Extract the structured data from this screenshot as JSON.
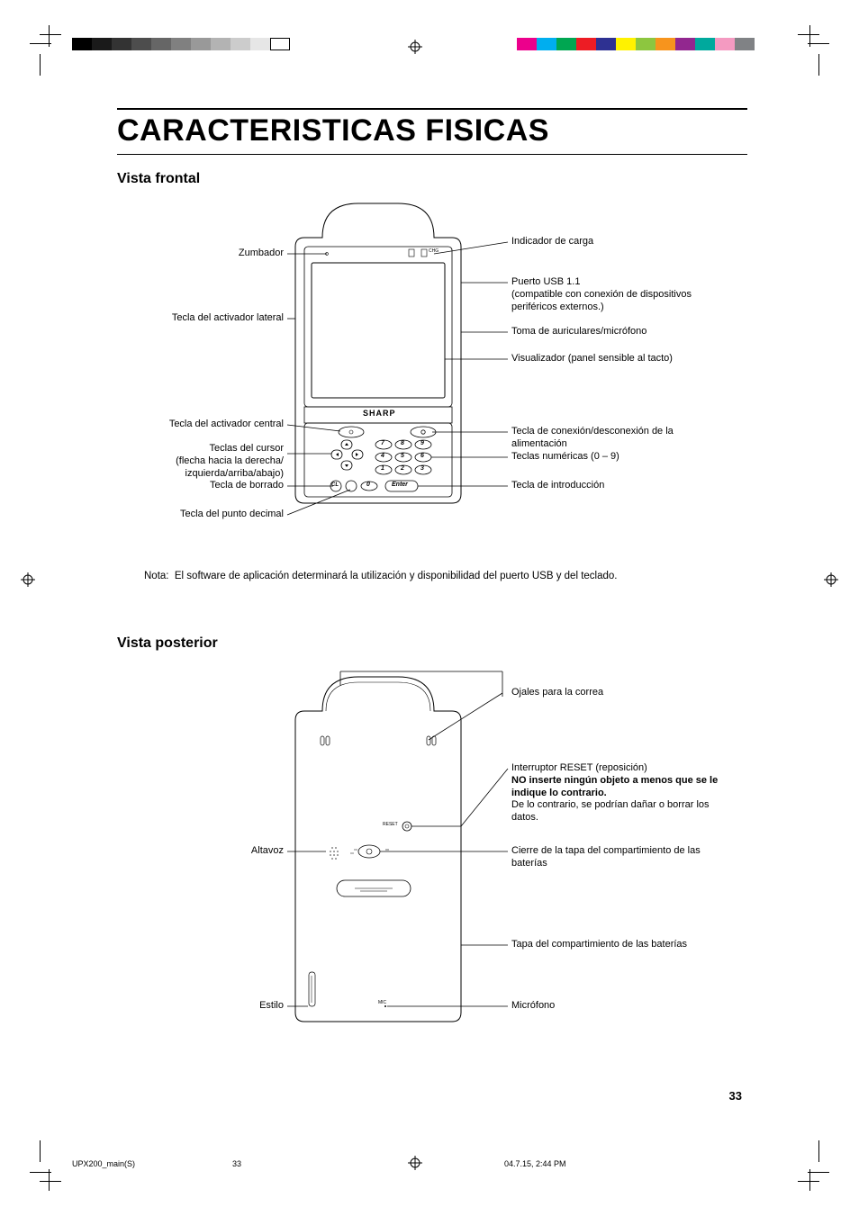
{
  "print_marks": {
    "gray_bar_colors": [
      "#000000",
      "#1a1a1a",
      "#333333",
      "#4d4d4d",
      "#666666",
      "#808080",
      "#999999",
      "#b3b3b3",
      "#cccccc",
      "#e6e6e6",
      "#ffffff"
    ],
    "cmyk_bar_colors": [
      "#ec008c",
      "#00aeef",
      "#00a651",
      "#ed1c24",
      "#2e3192",
      "#fff200",
      "#8dc63f",
      "#f7941d",
      "#92278f",
      "#00a99d",
      "#f49ac1",
      "#808285"
    ]
  },
  "title": "CARACTERISTICAS FISICAS",
  "section1": "Vista frontal",
  "front": {
    "brand": "SHARP",
    "chg": "CHG",
    "left": {
      "zumbador": "Zumbador",
      "activador_lateral": "Tecla del activador lateral",
      "activador_central": "Tecla del activador central",
      "cursor": "Teclas del cursor",
      "cursor_sub": "(flecha hacia la derecha/\nizquierda/arriba/abajo)",
      "borrado": "Tecla de borrado",
      "decimal": "Tecla del punto decimal"
    },
    "right": {
      "carga": "Indicador de carga",
      "usb": "Puerto USB 1.1",
      "usb_sub": "(compatible con conexión de dispositivos periféricos externos.)",
      "audio": "Toma de auriculares/micrófono",
      "display": "Visualizador (panel sensible al tacto)",
      "power": "Tecla de conexión/desconexión de la alimentación",
      "numeric": "Teclas numéricas (0 – 9)",
      "enter": "Tecla de introducción"
    },
    "keys": {
      "k7": "7",
      "k8": "8",
      "k9": "9",
      "k4": "4",
      "k5": "5",
      "k6": "6",
      "k1": "1",
      "k2": "2",
      "k3": "3",
      "k0": "0",
      "cl": "CL",
      "enter": "Enter"
    }
  },
  "note_label": "Nota:",
  "note_text": "El software de aplicación determinará la utilización y disponibilidad del puerto USB y del teclado.",
  "section2": "Vista posterior",
  "back": {
    "reset_small": "RESET",
    "mic_small": "MIC",
    "left": {
      "altavoz": "Altavoz",
      "estilo": "Estilo"
    },
    "right": {
      "ojales": "Ojales para la correa",
      "reset": "Interruptor RESET (reposición)",
      "reset_bold": "NO inserte ningún objeto a menos que se le indique lo contrario.",
      "reset_sub": "De lo contrario, se podrían dañar o borrar los datos.",
      "cierre": "Cierre de la tapa del compartimiento de las baterías",
      "tapa": "Tapa del compartimiento de las baterías",
      "mic": "Micrófono"
    }
  },
  "page_number": "33",
  "footer_left": "UPX200_main(S)",
  "footer_center": "33",
  "footer_right": "04.7.15, 2:44 PM"
}
